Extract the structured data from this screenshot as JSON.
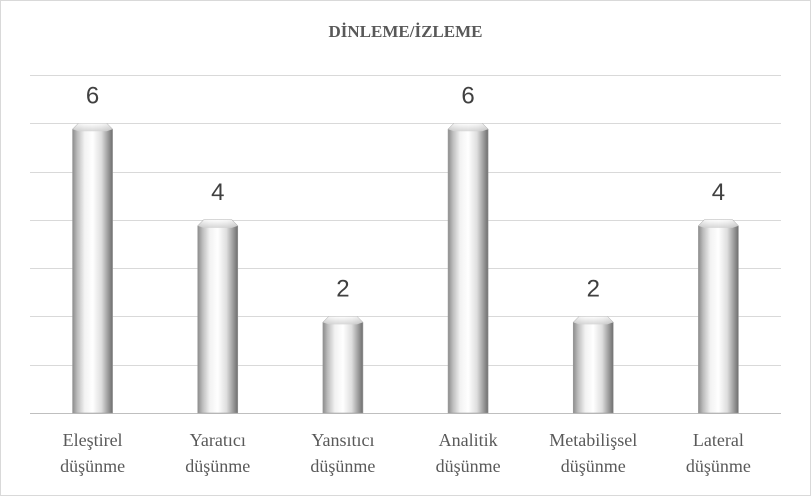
{
  "chart_data": {
    "type": "bar",
    "title": "DİNLEME/İZLEME",
    "categories": [
      [
        "Eleştirel",
        "düşünme"
      ],
      [
        "Yaratıcı",
        "düşünme"
      ],
      [
        "Yansıtıcı",
        "düşünme"
      ],
      [
        "Analitik",
        "düşünme"
      ],
      [
        "Metabilişsel",
        "düşünme"
      ],
      [
        "Lateral",
        "düşünme"
      ]
    ],
    "values": [
      6,
      4,
      2,
      6,
      2,
      4
    ],
    "ylim": [
      0,
      7
    ],
    "grid": true,
    "xlabel": "",
    "ylabel": ""
  }
}
